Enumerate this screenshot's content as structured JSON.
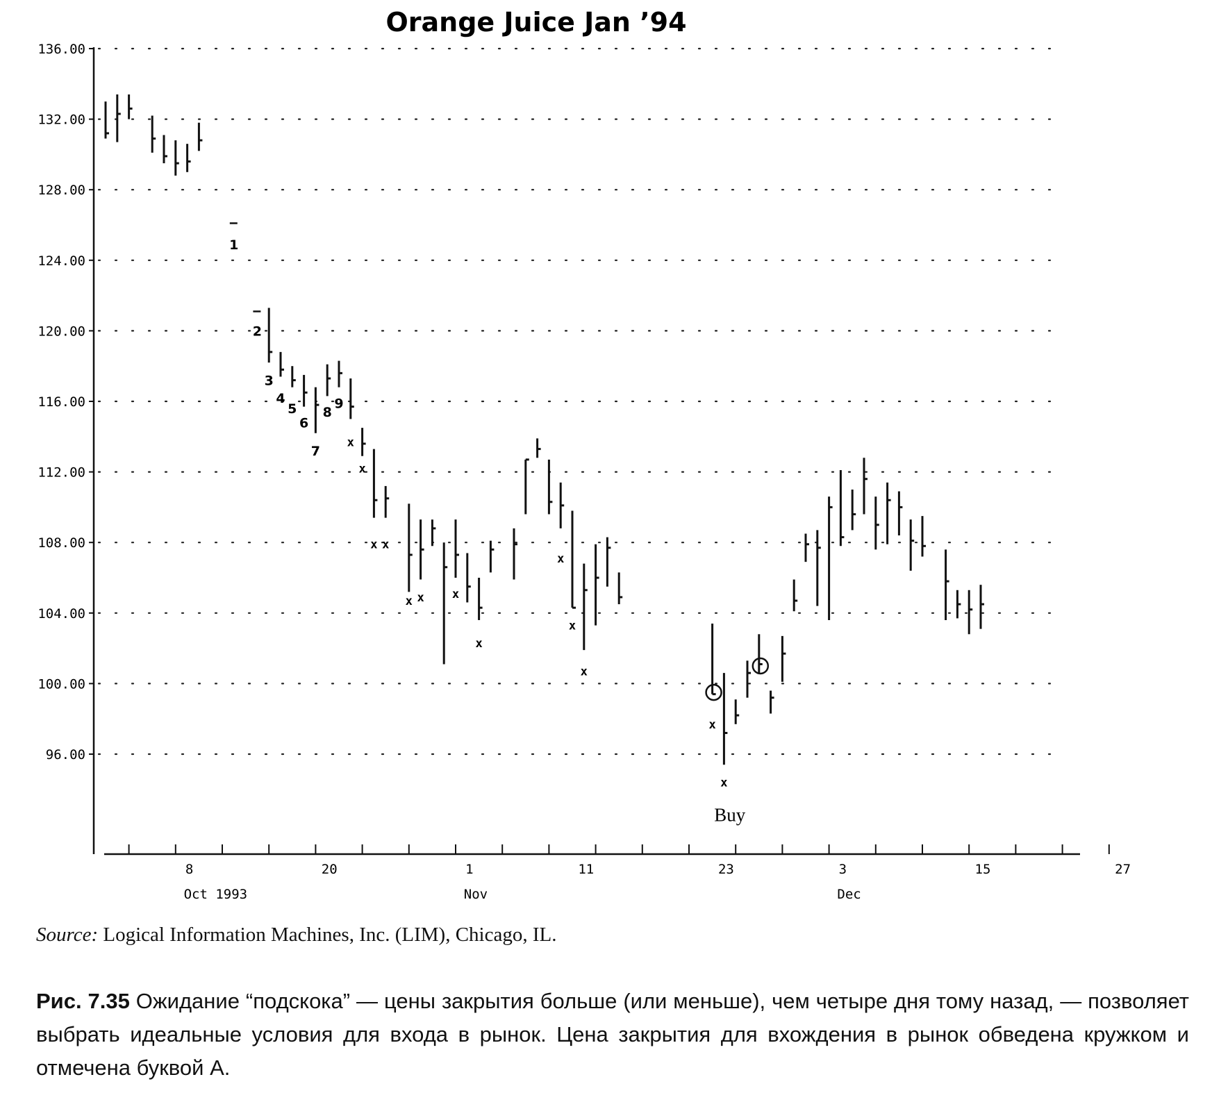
{
  "chart_data": {
    "type": "ohlc",
    "title": "Orange Juice Jan ’94",
    "ylim": [
      92,
      136
    ],
    "y_ticks": [
      "136.00",
      "132.00",
      "128.00",
      "124.00",
      "120.00",
      "116.00",
      "112.00",
      "108.00",
      "104.00",
      "100.00",
      "96.00"
    ],
    "x_ticks": [
      {
        "day": 8,
        "label": "8"
      },
      {
        "day": 20,
        "label": "20"
      },
      {
        "day": 32,
        "label": "1"
      },
      {
        "day": 42,
        "label": "11"
      },
      {
        "day": 54,
        "label": "23"
      },
      {
        "day": 64,
        "label": "3"
      },
      {
        "day": 76,
        "label": "15"
      },
      {
        "day": 88,
        "label": "27"
      }
    ],
    "month_labels": [
      {
        "day": 8,
        "label": "Oct 1993"
      },
      {
        "day": 32,
        "label": "Nov"
      },
      {
        "day": 64,
        "label": "Dec"
      }
    ],
    "grid": "dotted horizontal",
    "bars": [
      {
        "day": 1,
        "high": 133.0,
        "low": 130.9,
        "close": 131.2
      },
      {
        "day": 2,
        "high": 133.4,
        "low": 130.7,
        "close": 132.3
      },
      {
        "day": 3,
        "high": 133.4,
        "low": 132.0,
        "close": 132.6
      },
      {
        "day": 5,
        "high": 132.2,
        "low": 130.1,
        "close": 130.9
      },
      {
        "day": 6,
        "high": 131.1,
        "low": 129.5,
        "close": 129.9
      },
      {
        "day": 7,
        "high": 130.8,
        "low": 128.8,
        "close": 129.5
      },
      {
        "day": 8,
        "high": 130.6,
        "low": 129.0,
        "close": 129.6
      },
      {
        "day": 9,
        "high": 131.8,
        "low": 130.2,
        "close": 130.8
      },
      {
        "day": 12,
        "high": 126.1,
        "low": 126.1,
        "close": 126.1
      },
      {
        "day": 14,
        "high": 121.1,
        "low": 121.1,
        "close": 121.1
      },
      {
        "day": 15,
        "high": 121.3,
        "low": 118.2,
        "close": 118.8
      },
      {
        "day": 16,
        "high": 118.8,
        "low": 117.4,
        "close": 117.8
      },
      {
        "day": 17,
        "high": 118.0,
        "low": 116.8,
        "close": 117.2
      },
      {
        "day": 18,
        "high": 117.5,
        "low": 115.7,
        "close": 116.5
      },
      {
        "day": 19,
        "high": 116.8,
        "low": 114.2,
        "close": 115.8
      },
      {
        "day": 20,
        "high": 118.1,
        "low": 116.3,
        "close": 117.3
      },
      {
        "day": 21,
        "high": 118.3,
        "low": 116.8,
        "close": 117.6
      },
      {
        "day": 22,
        "high": 117.3,
        "low": 115.0,
        "close": 115.7
      },
      {
        "day": 23,
        "high": 114.5,
        "low": 112.9,
        "close": 113.6
      },
      {
        "day": 24,
        "high": 113.3,
        "low": 109.4,
        "close": 110.4
      },
      {
        "day": 25,
        "high": 111.2,
        "low": 109.4,
        "close": 110.5
      },
      {
        "day": 27,
        "high": 110.2,
        "low": 105.2,
        "close": 107.3
      },
      {
        "day": 28,
        "high": 109.3,
        "low": 105.9,
        "close": 107.6
      },
      {
        "day": 29,
        "high": 109.3,
        "low": 107.8,
        "close": 108.8
      },
      {
        "day": 30,
        "high": 108.0,
        "low": 101.1,
        "close": 106.6
      },
      {
        "day": 31,
        "high": 109.3,
        "low": 106.0,
        "close": 107.3
      },
      {
        "day": 32,
        "high": 107.4,
        "low": 104.6,
        "close": 105.5
      },
      {
        "day": 33,
        "high": 106.0,
        "low": 103.6,
        "close": 104.3
      },
      {
        "day": 34,
        "high": 108.1,
        "low": 106.3,
        "close": 107.6
      },
      {
        "day": 36,
        "high": 108.8,
        "low": 105.9,
        "close": 107.9
      },
      {
        "day": 37,
        "high": 112.7,
        "low": 109.6,
        "close": 112.7
      },
      {
        "day": 38,
        "high": 113.9,
        "low": 112.8,
        "close": 113.3
      },
      {
        "day": 39,
        "high": 112.7,
        "low": 109.6,
        "close": 110.3
      },
      {
        "day": 40,
        "high": 111.4,
        "low": 108.8,
        "close": 110.1
      },
      {
        "day": 41,
        "high": 109.8,
        "low": 104.3,
        "close": 104.3
      },
      {
        "day": 42,
        "high": 106.8,
        "low": 101.9,
        "close": 105.3
      },
      {
        "day": 43,
        "high": 107.9,
        "low": 103.3,
        "close": 106.0
      },
      {
        "day": 44,
        "high": 108.3,
        "low": 105.5,
        "close": 107.7
      },
      {
        "day": 45,
        "high": 106.3,
        "low": 104.5,
        "close": 104.9
      },
      {
        "day": 53,
        "high": 103.4,
        "low": 99.4,
        "close": 99.4
      },
      {
        "day": 54,
        "high": 100.6,
        "low": 95.4,
        "close": 97.2
      },
      {
        "day": 55,
        "high": 99.1,
        "low": 97.7,
        "close": 98.2
      },
      {
        "day": 56,
        "high": 101.3,
        "low": 99.2,
        "close": 100.6
      },
      {
        "day": 57,
        "high": 102.8,
        "low": 100.6,
        "close": 101.1
      },
      {
        "day": 58,
        "high": 99.6,
        "low": 98.3,
        "close": 99.2
      },
      {
        "day": 59,
        "high": 102.7,
        "low": 100.1,
        "close": 101.7
      },
      {
        "day": 60,
        "high": 105.9,
        "low": 104.1,
        "close": 104.7
      },
      {
        "day": 61,
        "high": 108.5,
        "low": 106.9,
        "close": 107.9
      },
      {
        "day": 62,
        "high": 108.7,
        "low": 104.4,
        "close": 107.7
      },
      {
        "day": 63,
        "high": 110.6,
        "low": 103.6,
        "close": 110.0
      },
      {
        "day": 64,
        "high": 112.1,
        "low": 107.8,
        "close": 108.3
      },
      {
        "day": 65,
        "high": 111.0,
        "low": 108.7,
        "close": 109.6
      },
      {
        "day": 66,
        "high": 112.8,
        "low": 109.6,
        "close": 111.6
      },
      {
        "day": 67,
        "high": 110.6,
        "low": 107.6,
        "close": 109.0
      },
      {
        "day": 68,
        "high": 111.4,
        "low": 107.9,
        "close": 110.4
      },
      {
        "day": 69,
        "high": 110.9,
        "low": 108.4,
        "close": 110.0
      },
      {
        "day": 70,
        "high": 109.3,
        "low": 106.4,
        "close": 108.1
      },
      {
        "day": 71,
        "high": 109.5,
        "low": 107.2,
        "close": 107.8
      },
      {
        "day": 73,
        "high": 107.6,
        "low": 103.6,
        "close": 105.8
      },
      {
        "day": 74,
        "high": 105.3,
        "low": 103.7,
        "close": 104.5
      },
      {
        "day": 75,
        "high": 105.3,
        "low": 102.8,
        "close": 104.2
      },
      {
        "day": 76,
        "high": 105.6,
        "low": 103.1,
        "close": 104.5
      }
    ],
    "numbered_labels": [
      {
        "text": "1",
        "day": 12,
        "y": 124.9
      },
      {
        "text": "2",
        "day": 14,
        "y": 120.0
      },
      {
        "text": "3",
        "day": 15,
        "y": 117.2
      },
      {
        "text": "4",
        "day": 16,
        "y": 116.2
      },
      {
        "text": "5",
        "day": 17,
        "y": 115.6
      },
      {
        "text": "6",
        "day": 18,
        "y": 114.8
      },
      {
        "text": "7",
        "day": 19,
        "y": 113.2
      },
      {
        "text": "8",
        "day": 20,
        "y": 115.4
      },
      {
        "text": "9",
        "day": 21,
        "y": 115.9
      }
    ],
    "x_marks": [
      {
        "day": 22,
        "y": 113.7
      },
      {
        "day": 23,
        "y": 112.2
      },
      {
        "day": 24,
        "y": 107.9
      },
      {
        "day": 25,
        "y": 107.9
      },
      {
        "day": 27,
        "y": 104.7
      },
      {
        "day": 28,
        "y": 104.9
      },
      {
        "day": 31,
        "y": 105.1
      },
      {
        "day": 33,
        "y": 102.3
      },
      {
        "day": 40,
        "y": 107.1
      },
      {
        "day": 41,
        "y": 103.3
      },
      {
        "day": 42,
        "y": 100.7
      },
      {
        "day": 53,
        "y": 97.7
      },
      {
        "day": 54,
        "y": 94.4
      }
    ],
    "circles": [
      {
        "day": 53,
        "y": 99.5
      },
      {
        "day": 57,
        "y": 101.0
      }
    ],
    "annotation": {
      "text": "Buy",
      "day": 54.5,
      "y": 92.6
    }
  },
  "source": {
    "prefix": "Source:",
    "text": " Logical Information Machines, Inc. (LIM), Chicago, IL."
  },
  "caption": {
    "fig_num": "Рис. 7.35",
    "text": " Ожидание “подскока” — цены закрытия больше (или меньше), чем четыре дня тому назад, — позволяет выбрать идеальные условия для входа в рынок. Цена закрытия для вхождения в рынок обведена кружком и отмечена буквой А."
  }
}
